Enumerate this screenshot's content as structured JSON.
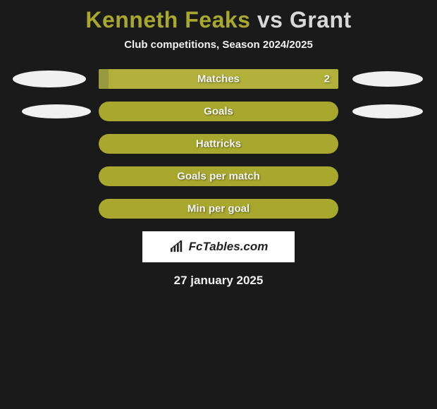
{
  "title": {
    "player1": "Kenneth Feaks",
    "vs": " vs ",
    "player2": "Grant"
  },
  "title_colors": {
    "p1": "#a8a82e",
    "vs_and_p2": "#d8d8d8"
  },
  "subtitle": "Club competitions, Season 2024/2025",
  "background_color": "#1a1a1a",
  "ellipse_color": "#f0f0f0",
  "rows": [
    {
      "label": "Matches",
      "value_right": "2",
      "left_ellipse": true,
      "right_ellipse": true,
      "left_size_class": "r1",
      "right_size_class": "r1",
      "bar": {
        "bg": "#b0b03a",
        "fill_color": "#999940",
        "fill_pct": 4,
        "border_radius": 2
      }
    },
    {
      "label": "Goals",
      "value_right": "",
      "left_ellipse": true,
      "right_ellipse": true,
      "left_size_class": "r2",
      "right_size_class": "r2",
      "bar": {
        "bg": "#a8a82e",
        "fill_color": "#a8a82e",
        "fill_pct": 0,
        "border_radius": 14
      }
    },
    {
      "label": "Hattricks",
      "value_right": "",
      "left_ellipse": false,
      "right_ellipse": false,
      "bar": {
        "bg": "#a8a82e",
        "fill_color": "#a8a82e",
        "fill_pct": 0,
        "border_radius": 14
      }
    },
    {
      "label": "Goals per match",
      "value_right": "",
      "left_ellipse": false,
      "right_ellipse": false,
      "bar": {
        "bg": "#a8a82e",
        "fill_color": "#a8a82e",
        "fill_pct": 0,
        "border_radius": 14
      }
    },
    {
      "label": "Min per goal",
      "value_right": "",
      "left_ellipse": false,
      "right_ellipse": false,
      "bar": {
        "bg": "#a8a82e",
        "fill_color": "#a8a82e",
        "fill_pct": 0,
        "border_radius": 14
      }
    }
  ],
  "brand": {
    "text": "FcTables.com",
    "icon_color": "#222222",
    "box_bg": "#ffffff"
  },
  "date": "27 january 2025",
  "text_color": "#f0f0f0",
  "label_fontsize": 15,
  "title_fontsize": 32,
  "subtitle_fontsize": 15
}
